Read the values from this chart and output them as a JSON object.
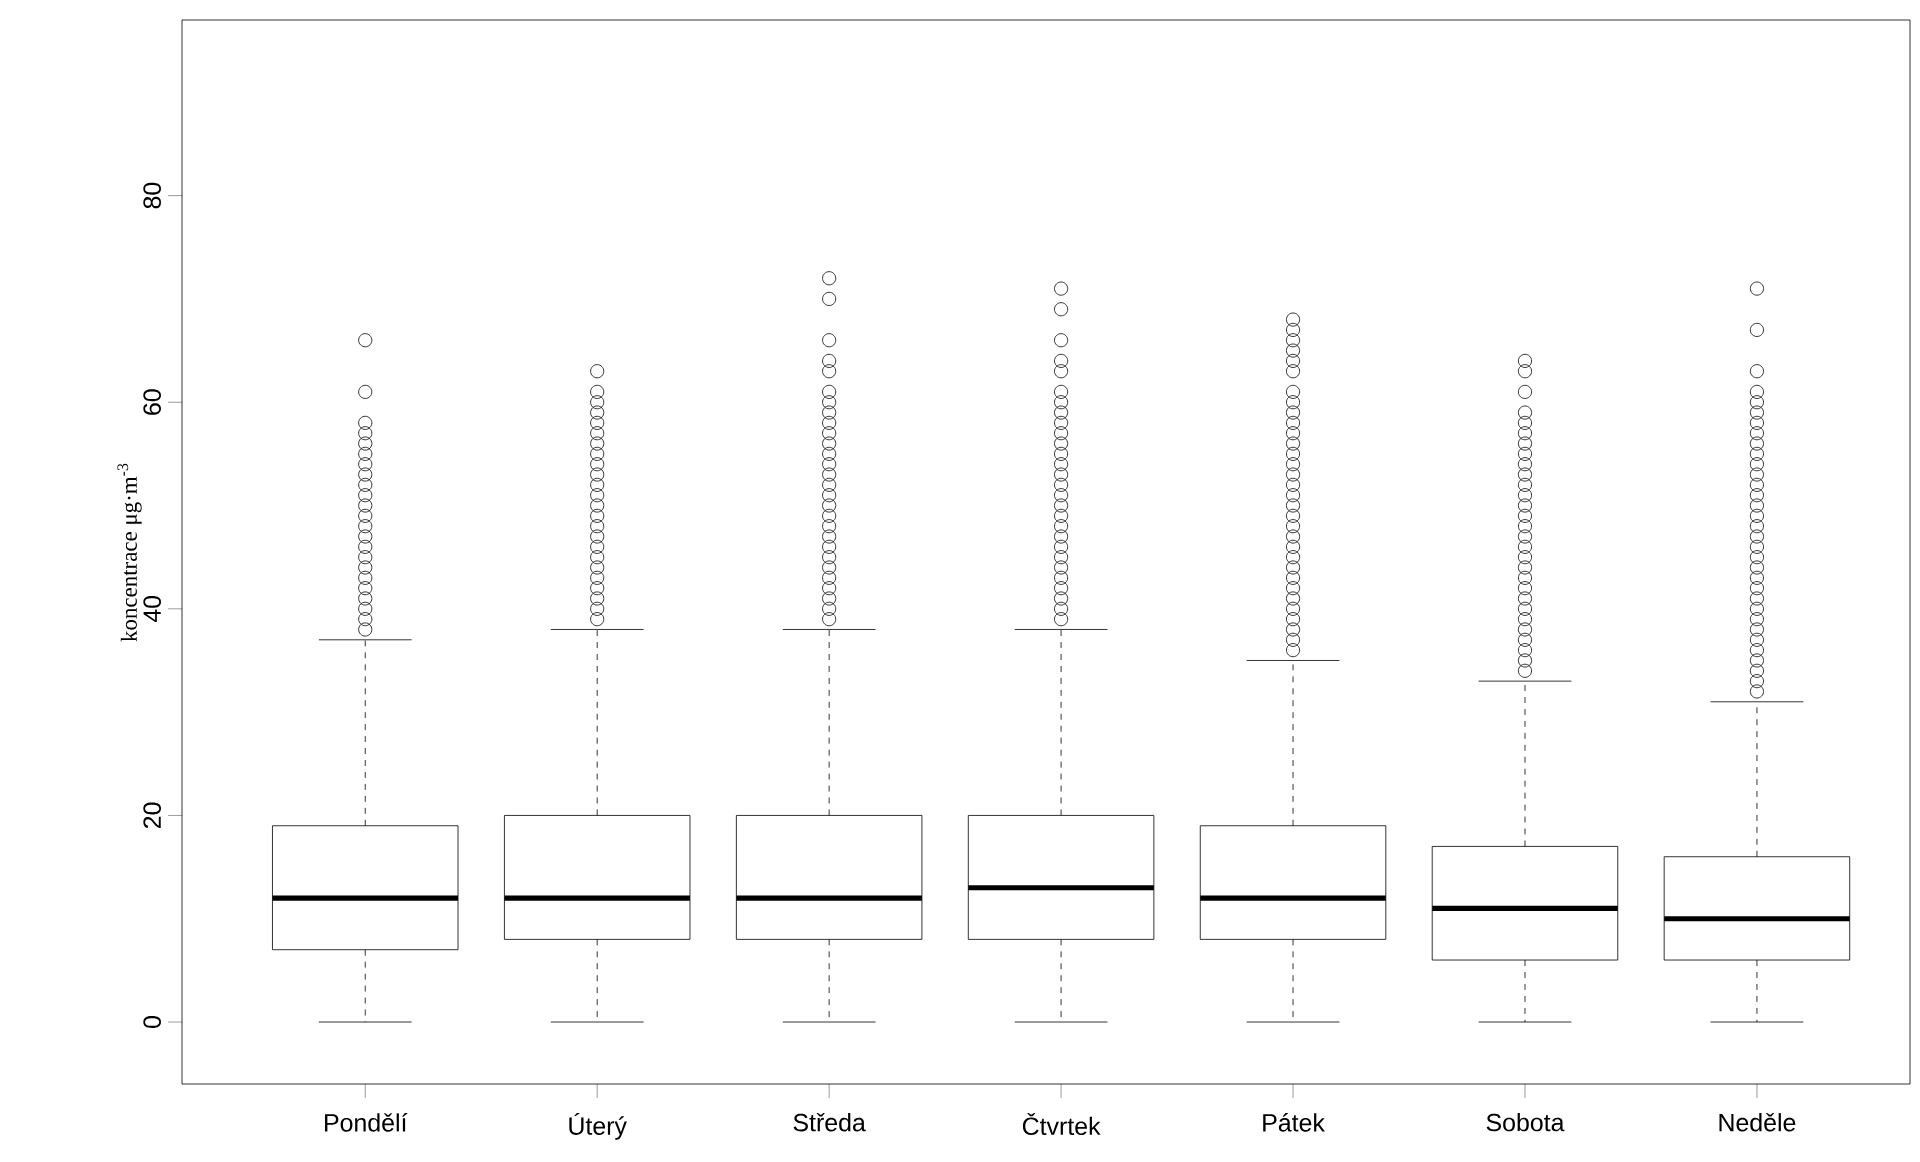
{
  "chart_data": {
    "type": "box",
    "ylabel": "koncentrace μg·m$^{-3}$",
    "categories": [
      "Pondělí",
      "Úterý",
      "Středa",
      "Čtvrtek",
      "Pátek",
      "Sobota",
      "Neděle"
    ],
    "boxes": [
      {
        "low": 0,
        "q1": 7,
        "median": 12,
        "q3": 19,
        "high": 37,
        "outliers": [
          38,
          39,
          40,
          41,
          42,
          43,
          44,
          45,
          46,
          47,
          48,
          49,
          50,
          51,
          52,
          53,
          54,
          55,
          56,
          57,
          58,
          61,
          66
        ]
      },
      {
        "low": 0,
        "q1": 8,
        "median": 12,
        "q3": 20,
        "high": 38,
        "outliers": [
          39,
          40,
          41,
          42,
          43,
          44,
          45,
          46,
          47,
          48,
          49,
          50,
          51,
          52,
          53,
          54,
          55,
          56,
          57,
          58,
          59,
          60,
          61,
          63
        ]
      },
      {
        "low": 0,
        "q1": 8,
        "median": 12,
        "q3": 20,
        "high": 38,
        "outliers": [
          39,
          40,
          41,
          42,
          43,
          44,
          45,
          46,
          47,
          48,
          49,
          50,
          51,
          52,
          53,
          54,
          55,
          56,
          57,
          58,
          59,
          60,
          61,
          63,
          64,
          66,
          70,
          72
        ]
      },
      {
        "low": 0,
        "q1": 8,
        "median": 13,
        "q3": 20,
        "high": 38,
        "outliers": [
          39,
          40,
          41,
          42,
          43,
          44,
          45,
          46,
          47,
          48,
          49,
          50,
          51,
          52,
          53,
          54,
          55,
          56,
          57,
          58,
          59,
          60,
          61,
          63,
          64,
          66,
          69,
          71
        ]
      },
      {
        "low": 0,
        "q1": 8,
        "median": 12,
        "q3": 19,
        "high": 35,
        "outliers": [
          36,
          37,
          38,
          39,
          40,
          41,
          42,
          43,
          44,
          45,
          46,
          47,
          48,
          49,
          50,
          51,
          52,
          53,
          54,
          55,
          56,
          57,
          58,
          59,
          60,
          61,
          63,
          64,
          65,
          66,
          67,
          68
        ]
      },
      {
        "low": 0,
        "q1": 6,
        "median": 11,
        "q3": 17,
        "high": 33,
        "outliers": [
          34,
          35,
          36,
          37,
          38,
          39,
          40,
          41,
          42,
          43,
          44,
          45,
          46,
          47,
          48,
          49,
          50,
          51,
          52,
          53,
          54,
          55,
          56,
          57,
          58,
          59,
          61,
          63,
          64
        ]
      },
      {
        "low": 0,
        "q1": 6,
        "median": 10,
        "q3": 16,
        "high": 31,
        "outliers": [
          32,
          33,
          34,
          35,
          36,
          37,
          38,
          39,
          40,
          41,
          42,
          43,
          44,
          45,
          46,
          47,
          48,
          49,
          50,
          51,
          52,
          53,
          54,
          55,
          56,
          57,
          58,
          59,
          60,
          61,
          63,
          67,
          71
        ]
      }
    ],
    "ylim": [
      -6,
      97
    ],
    "yticks": [
      0,
      20,
      40,
      60,
      80
    ]
  }
}
